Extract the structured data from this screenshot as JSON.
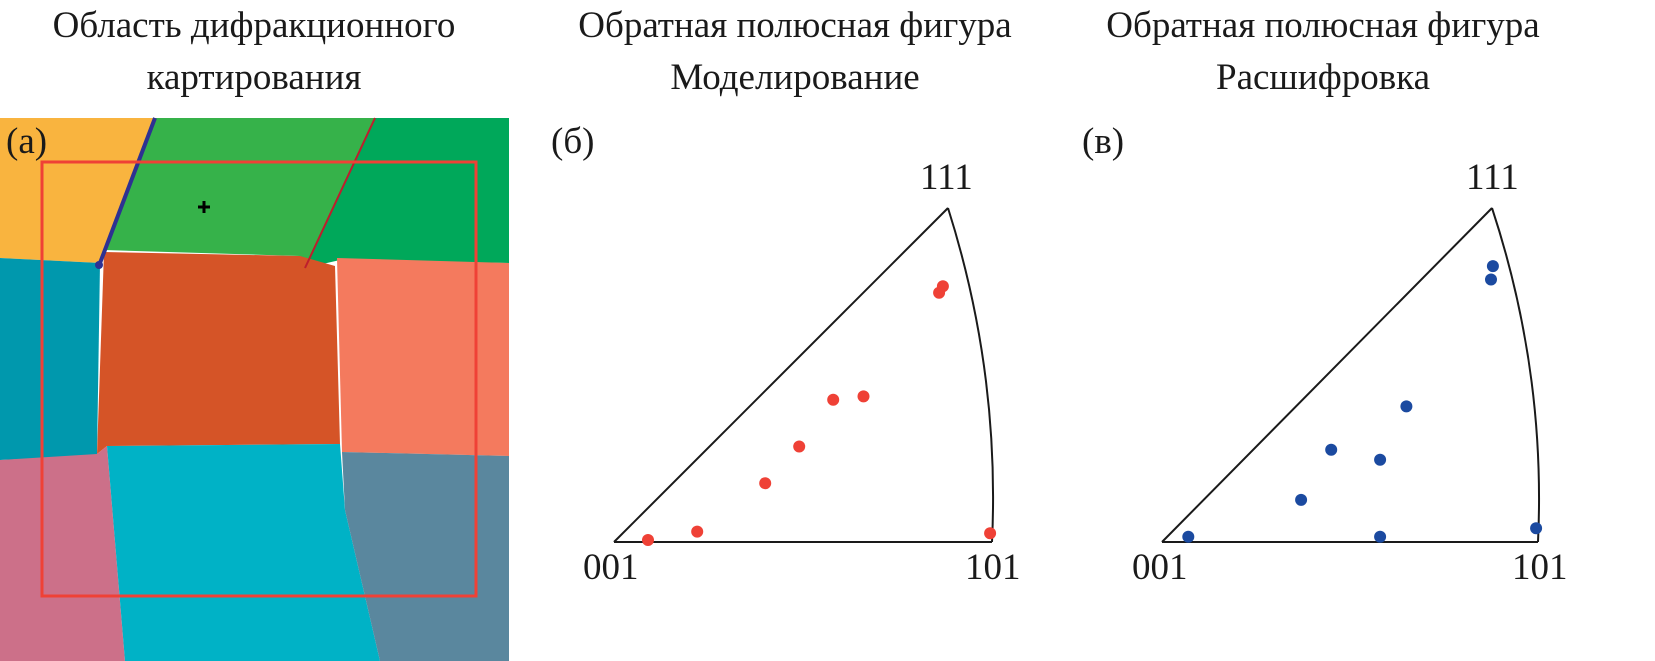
{
  "panels": [
    {
      "id": "a",
      "label": "(а)",
      "title_lines": [
        "Область дифракционного",
        "картирования"
      ],
      "grain_colors": [
        "#f9b43f",
        "#36b24a",
        "#00a85a",
        "#0098ad",
        "#d55427",
        "#f47a5e",
        "#cc7089",
        "#00b2c6",
        "#5a879e"
      ],
      "frame_color": "#ef4136",
      "marker_icon": "plus-marker-icon"
    },
    {
      "id": "b",
      "label": "(б)",
      "title_lines": [
        "Обратная полюсная фигура",
        "Моделирование"
      ],
      "poles": {
        "p001": "001",
        "p101": "101",
        "p111": "111"
      },
      "point_color": "#ef4136",
      "points": [
        [
          0.09,
          0.0
        ],
        [
          0.4,
          0.17
        ],
        [
          0.49,
          0.28
        ],
        [
          0.22,
          0.025
        ],
        [
          0.58,
          0.42
        ],
        [
          0.66,
          0.43
        ],
        [
          0.995,
          0.02
        ],
        [
          0.87,
          0.76
        ],
        [
          0.86,
          0.74
        ]
      ]
    },
    {
      "id": "c",
      "label": "(в)",
      "title_lines": [
        "Обратная полюсная фигура",
        "Расшифровка"
      ],
      "poles": {
        "p001": "001",
        "p101": "101",
        "p111": "111"
      },
      "point_color": "#1b4aa0",
      "points": [
        [
          0.07,
          0.01
        ],
        [
          0.37,
          0.12
        ],
        [
          0.45,
          0.27
        ],
        [
          0.58,
          0.24
        ],
        [
          0.65,
          0.4
        ],
        [
          0.58,
          0.01
        ],
        [
          0.995,
          0.035
        ],
        [
          0.88,
          0.82
        ],
        [
          0.875,
          0.78
        ]
      ]
    }
  ]
}
